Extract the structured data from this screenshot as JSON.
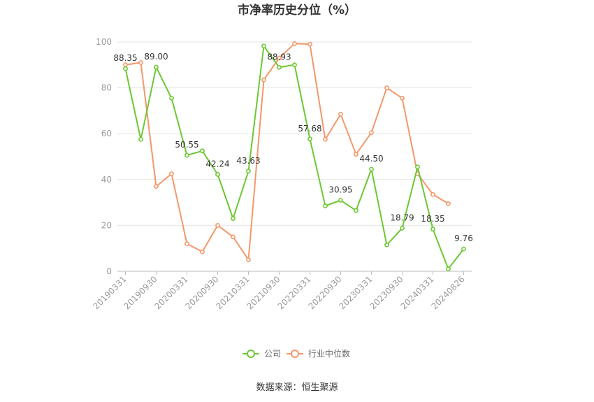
{
  "chart_data": {
    "type": "line",
    "title": "市净率历史分位（%）",
    "xlabel": "",
    "ylabel": "",
    "ylim": [
      0,
      100
    ],
    "yticks": [
      0,
      20,
      40,
      60,
      80,
      100
    ],
    "grid": true,
    "legend_position": "bottom",
    "x": [
      "20190331",
      "20190630",
      "20190930",
      "20191231",
      "20200331",
      "20200630",
      "20200930",
      "20201231",
      "20210331",
      "20210630",
      "20210930",
      "20211231",
      "20220331",
      "20220630",
      "20220930",
      "20221231",
      "20230331",
      "20230630",
      "20230930",
      "20231231",
      "20240331",
      "20240630",
      "20240826"
    ],
    "xtick_labels": [
      "20190331",
      "20190930",
      "20200331",
      "20200930",
      "20210331",
      "20210930",
      "20220331",
      "20220930",
      "20230331",
      "20230930",
      "20240331",
      "20240826"
    ],
    "xtick_indices": [
      0,
      2,
      4,
      6,
      8,
      10,
      12,
      14,
      16,
      18,
      20,
      22
    ],
    "series": [
      {
        "name": "公司",
        "color": "#6cc832",
        "values": [
          88.35,
          57.5,
          89.0,
          75.5,
          50.55,
          52.5,
          42.24,
          23.0,
          43.63,
          98.2,
          88.93,
          90.0,
          57.68,
          28.5,
          30.95,
          26.5,
          44.5,
          11.5,
          18.79,
          45.5,
          18.35,
          1.0,
          9.76
        ],
        "labels": {
          "0": "88.35",
          "2": "89.00",
          "4": "50.55",
          "6": "42.24",
          "8": "43.63",
          "10": "88.93",
          "12": "57.68",
          "14": "30.95",
          "16": "44.50",
          "18": "18.79",
          "20": "18.35",
          "22": "9.76"
        }
      },
      {
        "name": "行业中位数",
        "color": "#f5976a",
        "values": [
          90.0,
          91.0,
          37.0,
          42.5,
          12.0,
          8.5,
          20.0,
          15.0,
          5.0,
          83.5,
          93.0,
          99.3,
          99.0,
          57.5,
          68.5,
          51.0,
          60.5,
          80.0,
          75.5,
          42.5,
          33.5,
          29.5,
          null
        ]
      }
    ]
  },
  "source": "数据来源：恒生聚源"
}
